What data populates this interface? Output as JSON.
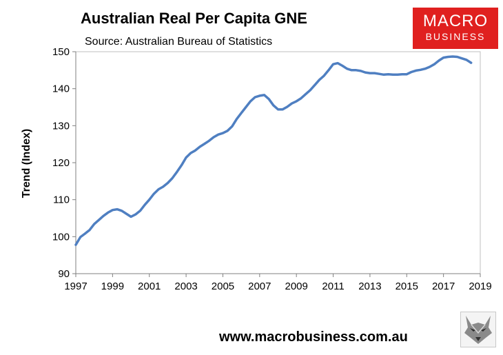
{
  "chart_data": {
    "type": "line",
    "title": "Australian Real Per Capita GNE",
    "subtitle": "Source: Australian Bureau of Statistics",
    "xlabel": "",
    "ylabel": "Trend (Index)",
    "xlim": [
      1997,
      2019
    ],
    "ylim": [
      90,
      150
    ],
    "x_ticks": [
      "1997",
      "1999",
      "2001",
      "2003",
      "2005",
      "2007",
      "2009",
      "2011",
      "2013",
      "2015",
      "2017",
      "2019"
    ],
    "y_ticks": [
      "90",
      "100",
      "110",
      "120",
      "130",
      "140",
      "150"
    ],
    "grid": false,
    "legend": "none",
    "series": [
      {
        "color": "#4f7fc1",
        "x": [
          1997.0,
          1997.25,
          1997.5,
          1997.75,
          1998.0,
          1998.25,
          1998.5,
          1998.75,
          1999.0,
          1999.25,
          1999.5,
          1999.75,
          2000.0,
          2000.25,
          2000.5,
          2000.75,
          2001.0,
          2001.25,
          2001.5,
          2001.75,
          2002.0,
          2002.25,
          2002.5,
          2002.75,
          2003.0,
          2003.25,
          2003.5,
          2003.75,
          2004.0,
          2004.25,
          2004.5,
          2004.75,
          2005.0,
          2005.25,
          2005.5,
          2005.75,
          2006.0,
          2006.25,
          2006.5,
          2006.75,
          2007.0,
          2007.25,
          2007.5,
          2007.75,
          2008.0,
          2008.25,
          2008.5,
          2008.75,
          2009.0,
          2009.25,
          2009.5,
          2009.75,
          2010.0,
          2010.25,
          2010.5,
          2010.75,
          2011.0,
          2011.25,
          2011.5,
          2011.75,
          2012.0,
          2012.25,
          2012.5,
          2012.75,
          2013.0,
          2013.25,
          2013.5,
          2013.75,
          2014.0,
          2014.25,
          2014.5,
          2014.75,
          2015.0,
          2015.25,
          2015.5,
          2015.75,
          2016.0,
          2016.25,
          2016.5,
          2016.75,
          2017.0,
          2017.25,
          2017.5,
          2017.75,
          2018.0,
          2018.25,
          2018.5
        ],
        "values": [
          97.8,
          99.9,
          100.8,
          101.8,
          103.4,
          104.5,
          105.6,
          106.5,
          107.2,
          107.4,
          107.0,
          106.2,
          105.4,
          106.0,
          107.0,
          108.6,
          110.0,
          111.6,
          112.8,
          113.5,
          114.5,
          115.8,
          117.5,
          119.3,
          121.4,
          122.6,
          123.3,
          124.3,
          125.1,
          125.9,
          126.9,
          127.6,
          128.0,
          128.6,
          129.8,
          131.8,
          133.4,
          135.0,
          136.6,
          137.7,
          138.1,
          138.3,
          137.2,
          135.5,
          134.4,
          134.4,
          135.1,
          136.0,
          136.6,
          137.4,
          138.5,
          139.6,
          141.0,
          142.4,
          143.5,
          145.0,
          146.6,
          146.9,
          146.2,
          145.4,
          145.0,
          145.0,
          144.8,
          144.4,
          144.2,
          144.2,
          144.0,
          143.8,
          143.9,
          143.8,
          143.8,
          143.9,
          143.9,
          144.5,
          144.9,
          145.1,
          145.4,
          145.9,
          146.6,
          147.6,
          148.4,
          148.6,
          148.7,
          148.6,
          148.2,
          147.8,
          147.0
        ]
      }
    ]
  },
  "logo": {
    "line1": "MACRO",
    "line2": "BUSINESS"
  },
  "website": "www.macrobusiness.com.au"
}
